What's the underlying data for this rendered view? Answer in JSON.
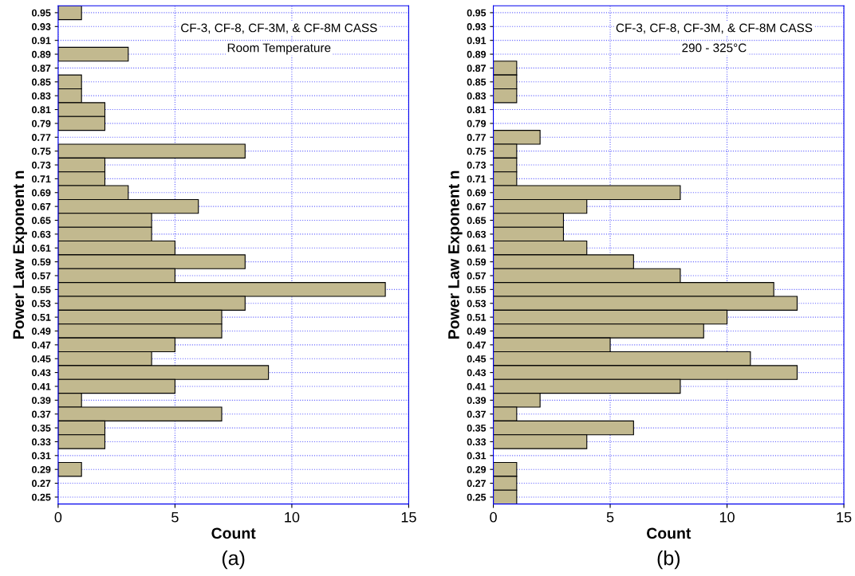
{
  "chart_data": [
    {
      "type": "bar",
      "orientation": "horizontal",
      "title": "CF-3, CF-8, CF-3M, & CF-8M CASS",
      "subtitle": "Room Temperature",
      "xlabel": "Count",
      "ylabel": "Power Law Exponent n",
      "annotations": [
        "(a)"
      ],
      "categories": [
        "0.95",
        "0.93",
        "0.91",
        "0.89",
        "0.87",
        "0.85",
        "0.83",
        "0.81",
        "0.79",
        "0.77",
        "0.75",
        "0.73",
        "0.71",
        "0.69",
        "0.67",
        "0.65",
        "0.63",
        "0.61",
        "0.59",
        "0.57",
        "0.55",
        "0.53",
        "0.51",
        "0.49",
        "0.47",
        "0.45",
        "0.43",
        "0.41",
        "0.39",
        "0.37",
        "0.35",
        "0.33",
        "0.31",
        "0.29",
        "0.27",
        "0.25"
      ],
      "values": [
        1,
        0,
        0,
        3,
        0,
        1,
        1,
        2,
        2,
        0,
        8,
        2,
        2,
        3,
        6,
        4,
        4,
        5,
        8,
        5,
        14,
        8,
        7,
        7,
        5,
        4,
        9,
        5,
        1,
        7,
        2,
        2,
        0,
        1,
        0,
        0
      ],
      "color": "#c2b98f",
      "xlim": [
        0,
        15
      ],
      "xticks": [
        0,
        5,
        10,
        15
      ],
      "grid": true
    },
    {
      "type": "bar",
      "orientation": "horizontal",
      "title": "CF-3, CF-8, CF-3M, & CF-8M CASS",
      "subtitle": "290 - 325°C",
      "xlabel": "Count",
      "ylabel": "Power Law Exponent n",
      "annotations": [
        "(b)"
      ],
      "categories": [
        "0.95",
        "0.93",
        "0.91",
        "0.89",
        "0.87",
        "0.85",
        "0.83",
        "0.81",
        "0.79",
        "0.77",
        "0.75",
        "0.73",
        "0.71",
        "0.69",
        "0.67",
        "0.65",
        "0.63",
        "0.61",
        "0.59",
        "0.57",
        "0.55",
        "0.53",
        "0.51",
        "0.49",
        "0.47",
        "0.45",
        "0.43",
        "0.41",
        "0.39",
        "0.37",
        "0.35",
        "0.33",
        "0.31",
        "0.29",
        "0.27",
        "0.25"
      ],
      "values": [
        0,
        0,
        0,
        0,
        1,
        1,
        1,
        0,
        0,
        2,
        1,
        1,
        1,
        8,
        4,
        3,
        3,
        4,
        6,
        8,
        12,
        13,
        10,
        9,
        5,
        11,
        13,
        8,
        2,
        1,
        6,
        4,
        0,
        1,
        1,
        1
      ],
      "color": "#c2b98f",
      "xlim": [
        0,
        15
      ],
      "xticks": [
        0,
        5,
        10,
        15
      ],
      "grid": true
    }
  ]
}
